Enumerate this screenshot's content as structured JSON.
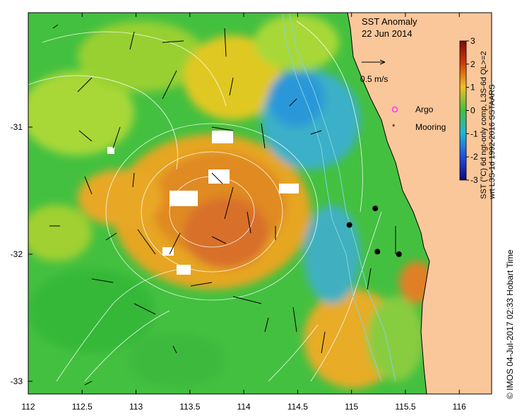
{
  "title": "SST Anomaly",
  "date": "22 Jun 2014",
  "scale_label": "0.5 m/s",
  "legend": {
    "argo": "Argo",
    "mooring": "Mooring"
  },
  "colorbar": {
    "ticks": [
      "3",
      "2",
      "1",
      "0",
      "-1",
      "-2",
      "-3"
    ],
    "label_line1": "SST (°C) 6d ngt-only comp, L3S-6d QL>=2",
    "label_line2": "wrt L3S-1d 1992-2016 SSTAARS"
  },
  "credit": "© IMOS 04-Jul-2017 02:33 Hobart Time",
  "axes": {
    "x_ticks": [
      "112",
      "112.5",
      "113",
      "113.5",
      "114",
      "114.5",
      "115",
      "115.5",
      "116"
    ],
    "y_ticks": [
      "-31",
      "-32",
      "-33"
    ],
    "lon_range": [
      112,
      116.3
    ],
    "lat_range": [
      -33.1,
      -30.1
    ]
  },
  "moorings": [
    {
      "lon": 115.22,
      "lat": -31.64
    },
    {
      "lon": 114.98,
      "lat": -31.77
    },
    {
      "lon": 115.24,
      "lat": -31.98
    },
    {
      "lon": 115.44,
      "lat": -32.0
    }
  ],
  "colors": {
    "land": "#f9c79a",
    "ocean_base": "#3fbf3f",
    "warm": "#e8a020",
    "cold": "#28a8d8"
  }
}
